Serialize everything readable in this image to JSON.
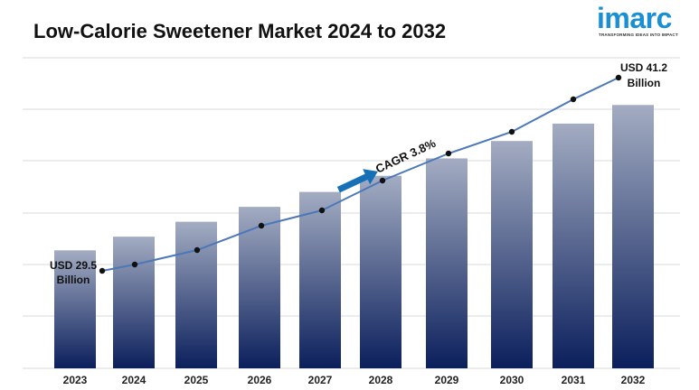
{
  "title": "Low-Calorie Sweetener Market 2024 to 2032",
  "logo": {
    "name": "imarc",
    "tagline": "TRANSFORMING IDEAS INTO IMPACT"
  },
  "colors": {
    "bar_top": "#a3acc2",
    "bar_bottom": "#0b1f5c",
    "line": "#4a78b8",
    "marker": "#111111",
    "arrow": "#1670b8",
    "grid": "#d9d9d9",
    "logo": "#1b8fd3"
  },
  "chart_data": {
    "type": "bar",
    "categories": [
      "2023",
      "2024",
      "2025",
      "2026",
      "2027",
      "2028",
      "2029",
      "2030",
      "2031",
      "2032"
    ],
    "values": [
      29.5,
      30.6,
      31.8,
      33.0,
      34.2,
      35.5,
      36.9,
      38.3,
      39.7,
      41.2
    ],
    "ylim": [
      20,
      45
    ],
    "grid": true,
    "trend_line": true,
    "annotations": {
      "first": [
        "USD 29.5",
        "Billion"
      ],
      "last": [
        "USD 41.2",
        "Billion"
      ],
      "cagr": "CAGR 3.8%"
    }
  }
}
